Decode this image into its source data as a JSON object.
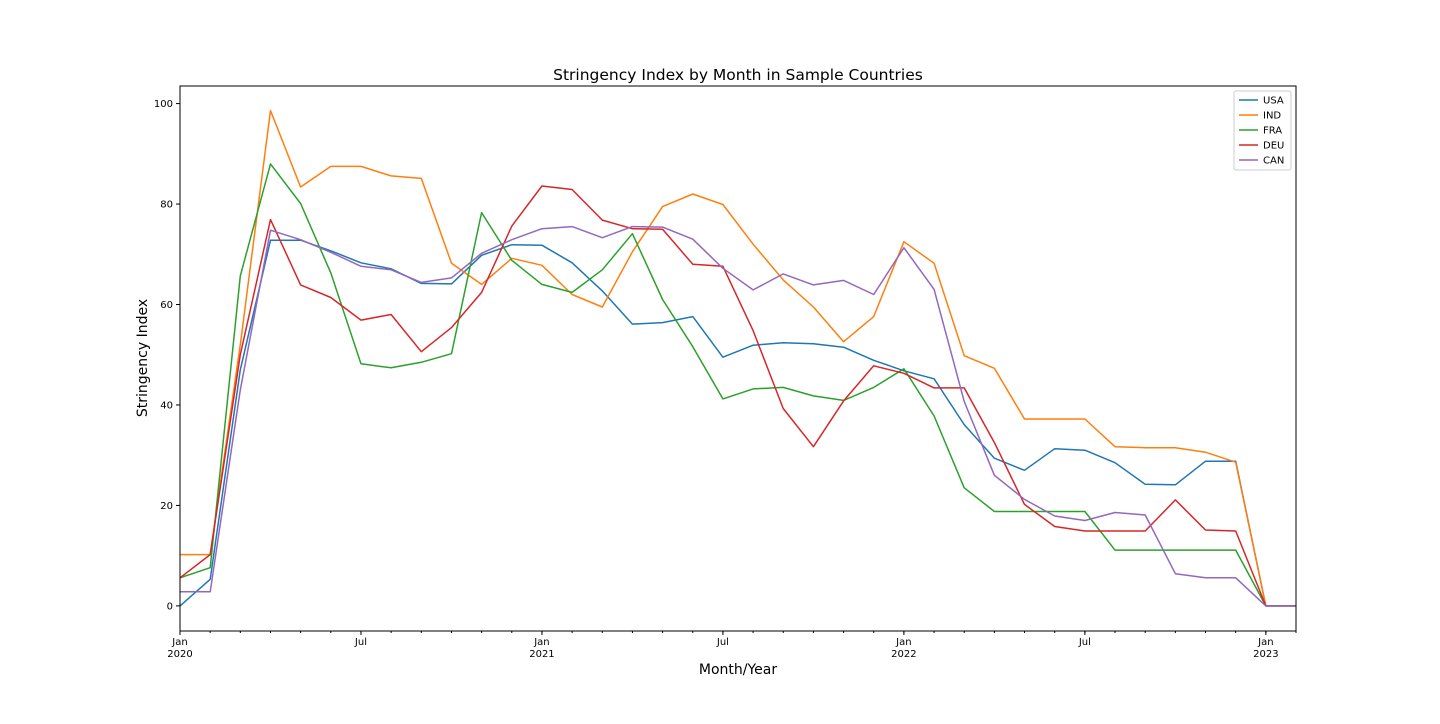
{
  "chart_data": {
    "type": "line",
    "title": "Stringency Index by Month in Sample Countries",
    "xlabel": "Month/Year",
    "ylabel": "Stringency Index",
    "x": [
      "2020-01",
      "2020-02",
      "2020-03",
      "2020-04",
      "2020-05",
      "2020-06",
      "2020-07",
      "2020-08",
      "2020-09",
      "2020-10",
      "2020-11",
      "2020-12",
      "2021-01",
      "2021-02",
      "2021-03",
      "2021-04",
      "2021-05",
      "2021-06",
      "2021-07",
      "2021-08",
      "2021-09",
      "2021-10",
      "2021-11",
      "2021-12",
      "2022-01",
      "2022-02",
      "2022-03",
      "2022-04",
      "2022-05",
      "2022-06",
      "2022-07",
      "2022-08",
      "2022-09",
      "2022-10",
      "2022-11",
      "2022-12",
      "2023-01",
      "2023-02"
    ],
    "xlim": [
      "2020-01",
      "2023-02"
    ],
    "ylim": [
      -5,
      103.5
    ],
    "yticks": [
      0,
      20,
      40,
      60,
      80,
      100
    ],
    "xticks": [
      {
        "x": "2020-01",
        "label": "Jan",
        "sublabel": "2020"
      },
      {
        "x": "2020-07",
        "label": "Jul",
        "sublabel": ""
      },
      {
        "x": "2021-01",
        "label": "Jan",
        "sublabel": "2021"
      },
      {
        "x": "2021-07",
        "label": "Jul",
        "sublabel": ""
      },
      {
        "x": "2022-01",
        "label": "Jan",
        "sublabel": "2022"
      },
      {
        "x": "2022-07",
        "label": "Jul",
        "sublabel": ""
      },
      {
        "x": "2023-01",
        "label": "Jan",
        "sublabel": "2023"
      }
    ],
    "grid": false,
    "legend_position": "top-right",
    "series": [
      {
        "name": "USA",
        "color": "#1f77b4",
        "values": [
          0,
          5.3,
          47,
          72.8,
          72.8,
          70.7,
          68.3,
          67.1,
          64.2,
          64.1,
          69.8,
          71.9,
          71.8,
          68.3,
          62.7,
          56.1,
          56.4,
          57.6,
          49.5,
          51.9,
          52.4,
          52.2,
          51.5,
          48.9,
          46.8,
          45.2,
          36.1,
          29.4,
          27.0,
          31.3,
          31.0,
          28.5,
          24.2,
          24.1,
          28.8,
          28.8,
          0,
          0
        ]
      },
      {
        "name": "IND",
        "color": "#ff7f0e",
        "values": [
          10.2,
          10.2,
          52,
          98.6,
          83.4,
          87.5,
          87.5,
          85.6,
          85.1,
          68.2,
          64.0,
          69.2,
          67.8,
          62.0,
          59.5,
          70.5,
          79.5,
          82.0,
          79.9,
          72.0,
          64.9,
          59.5,
          52.6,
          57.6,
          72.5,
          68.2,
          49.8,
          47.3,
          37.2,
          37.2,
          37.2,
          31.7,
          31.5,
          31.5,
          30.6,
          28.6,
          0,
          0
        ]
      },
      {
        "name": "FRA",
        "color": "#2ca02c",
        "values": [
          5.6,
          7.6,
          65.7,
          88.0,
          80.1,
          66.3,
          48.2,
          47.4,
          48.5,
          50.2,
          78.3,
          68.8,
          64.0,
          62.4,
          66.9,
          74.1,
          61.0,
          51.6,
          41.2,
          43.2,
          43.5,
          41.8,
          40.9,
          43.5,
          47.2,
          37.8,
          23.5,
          18.8,
          18.8,
          18.8,
          18.8,
          11.1,
          11.1,
          11.1,
          11.1,
          11.1,
          0,
          0
        ]
      },
      {
        "name": "DEU",
        "color": "#d62728",
        "values": [
          5.6,
          10.2,
          50,
          76.9,
          63.9,
          61.4,
          56.9,
          58.0,
          50.6,
          55.4,
          62.4,
          75.6,
          83.6,
          82.9,
          76.8,
          75.1,
          75.0,
          68.0,
          67.6,
          54.8,
          39.3,
          31.7,
          40.8,
          47.8,
          46.3,
          43.4,
          43.4,
          32.5,
          20.2,
          15.8,
          14.9,
          14.9,
          14.9,
          21.1,
          15.1,
          14.9,
          0,
          0
        ]
      },
      {
        "name": "CAN",
        "color": "#9467bd",
        "values": [
          2.8,
          2.8,
          43,
          74.8,
          72.9,
          70.4,
          67.6,
          66.9,
          64.4,
          65.3,
          70.2,
          72.9,
          75.1,
          75.5,
          73.3,
          75.5,
          75.4,
          73.0,
          67.2,
          62.9,
          66.1,
          63.9,
          64.8,
          62.0,
          71.3,
          63.0,
          40.7,
          26.0,
          21.2,
          17.9,
          17.0,
          18.6,
          18.1,
          6.4,
          5.6,
          5.6,
          0,
          0
        ]
      }
    ]
  }
}
